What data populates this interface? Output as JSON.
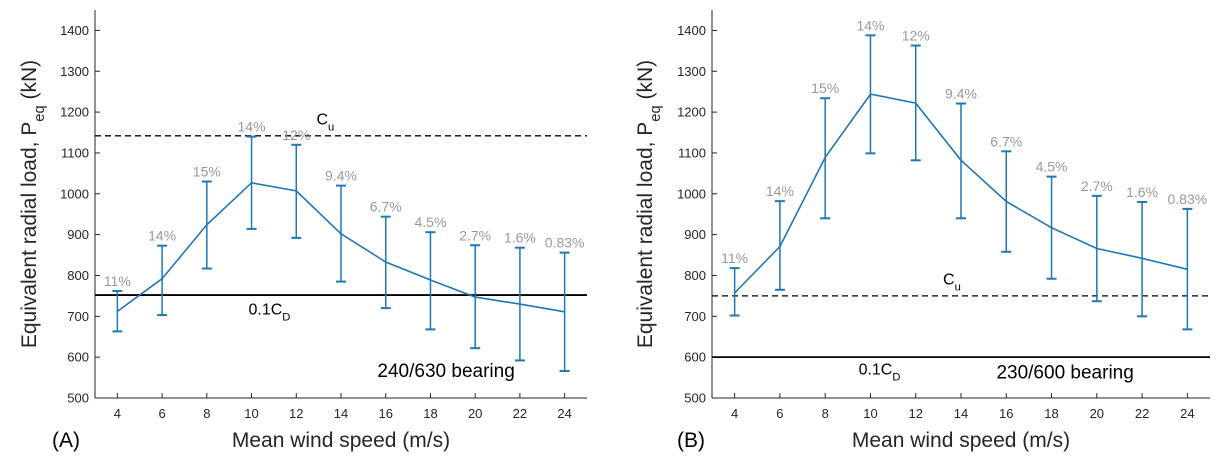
{
  "chart_data": [
    {
      "type": "line",
      "panel_label": "(A)",
      "xlabel": "Mean wind speed (m/s)",
      "ylabel_main": "Equivalent radial load, P",
      "ylabel_sub": "eq",
      "ylabel_unit": " (kN)",
      "xlim": [
        3,
        25
      ],
      "ylim": [
        500,
        1450
      ],
      "xticks": [
        4,
        6,
        8,
        10,
        12,
        14,
        16,
        18,
        20,
        22,
        24
      ],
      "yticks": [
        500,
        600,
        700,
        800,
        900,
        1000,
        1100,
        1200,
        1300,
        1400
      ],
      "x": [
        4,
        6,
        8,
        10,
        12,
        14,
        16,
        18,
        20,
        22,
        24
      ],
      "y": [
        712,
        792,
        924,
        1027,
        1007,
        902,
        833,
        789,
        747,
        730,
        711
      ],
      "err_low": [
        663,
        703,
        817,
        914,
        892,
        785,
        720,
        668,
        622,
        592,
        566
      ],
      "err_high": [
        762,
        873,
        1030,
        1140,
        1120,
        1020,
        944,
        906,
        874,
        868,
        856
      ],
      "probabilities": [
        "11%",
        "14%",
        "15%",
        "14%",
        "12%",
        "9.4%",
        "6.7%",
        "4.5%",
        "2.7%",
        "1.6%",
        "0.83%"
      ],
      "series_color": "#1f77b4",
      "reference_lines": [
        {
          "value": 1142,
          "style": "dashed",
          "label_main": "C",
          "label_sub": "u",
          "label_x": 13.3,
          "label_y": 1170
        },
        {
          "value": 752,
          "style": "solid",
          "label_main": "0.1C",
          "label_sub": "D",
          "label_x": 10.8,
          "label_y": 705
        }
      ],
      "annotation": "240/630 bearing",
      "annotation_pos": [
        18.7,
        552
      ]
    },
    {
      "type": "line",
      "panel_label": "(B)",
      "xlabel": "Mean wind speed (m/s)",
      "ylabel_main": "Equivalent radial load, P",
      "ylabel_sub": "eq",
      "ylabel_unit": " (kN)",
      "xlim": [
        3,
        25
      ],
      "ylim": [
        500,
        1450
      ],
      "xticks": [
        4,
        6,
        8,
        10,
        12,
        14,
        16,
        18,
        20,
        22,
        24
      ],
      "yticks": [
        500,
        600,
        700,
        800,
        900,
        1000,
        1100,
        1200,
        1300,
        1400
      ],
      "x": [
        4,
        6,
        8,
        10,
        12,
        14,
        16,
        18,
        20,
        22,
        24
      ],
      "y": [
        757,
        871,
        1089,
        1244,
        1222,
        1082,
        981,
        917,
        866,
        842,
        815
      ],
      "err_low": [
        702,
        765,
        940,
        1099,
        1082,
        940,
        858,
        792,
        737,
        700,
        668
      ],
      "err_high": [
        818,
        982,
        1234,
        1388,
        1363,
        1221,
        1104,
        1042,
        995,
        980,
        963
      ],
      "probabilities": [
        "11%",
        "14%",
        "15%",
        "14%",
        "12%",
        "9.4%",
        "6.7%",
        "4.5%",
        "2.7%",
        "1.6%",
        "0.83%"
      ],
      "series_color": "#1f77b4",
      "reference_lines": [
        {
          "value": 750,
          "style": "dashed",
          "label_main": "C",
          "label_sub": "u",
          "label_x": 13.6,
          "label_y": 778
        },
        {
          "value": 600,
          "style": "solid",
          "label_main": "0.1C",
          "label_sub": "D",
          "label_x": 10.4,
          "label_y": 558
        }
      ],
      "annotation": "230/600 bearing",
      "annotation_pos": [
        18.6,
        548
      ]
    }
  ]
}
